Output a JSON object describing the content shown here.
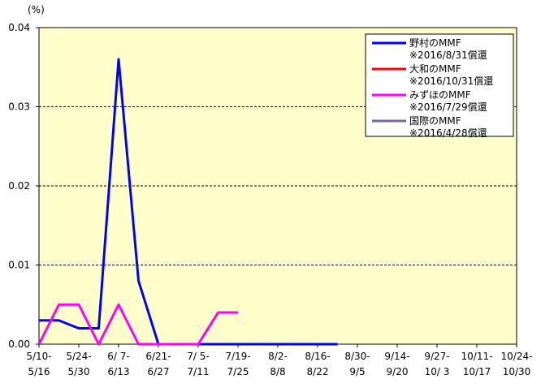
{
  "chart_data": {
    "type": "line",
    "y_unit": "(%)",
    "categories": [
      "5/10-\n5/16",
      null,
      "5/24-\n5/30",
      null,
      "6/ 7-\n6/13",
      null,
      "6/21-\n6/27",
      null,
      "7/ 5-\n7/11",
      null,
      "7/19-\n7/25",
      null,
      "8/2-\n8/8",
      null,
      "8/16-\n8/22",
      null,
      "8/30-\n9/5",
      null,
      "9/14-\n9/20",
      null,
      "9/27-\n10/ 3",
      null,
      "10/11-\n10/17",
      null,
      "10/24-\n10/30"
    ],
    "series": [
      {
        "name": "野村のMMF",
        "note": "※2016/8/31償還",
        "color": "#0000ff",
        "values": [
          0.003,
          0.003,
          0.002,
          0.002,
          0.036,
          0.008,
          0,
          0,
          0,
          0,
          0,
          0,
          0,
          0,
          0,
          0,
          null,
          null,
          null,
          null,
          null,
          null,
          null,
          null,
          null
        ]
      },
      {
        "name": "大和のMMF",
        "note": "※2016/10/31償還",
        "color": "#ff0000",
        "values": [
          null,
          null,
          null,
          null,
          null,
          null,
          null,
          null,
          null,
          null,
          null,
          null,
          null,
          null,
          null,
          null,
          null,
          null,
          null,
          null,
          null,
          null,
          null,
          null,
          null
        ]
      },
      {
        "name": "みずほのMMF",
        "note": "※2016/7/29償還",
        "color": "#ff00ff",
        "values": [
          0,
          0.005,
          0.005,
          0,
          0.005,
          0,
          0,
          0,
          0,
          0.004,
          0.004,
          null,
          null,
          null,
          null,
          null,
          null,
          null,
          null,
          null,
          null,
          null,
          null,
          null,
          null
        ]
      },
      {
        "name": "国際のMMF",
        "note": "※2016/4/28償還",
        "color": "#8060a0",
        "values": [
          null,
          null,
          null,
          null,
          null,
          null,
          null,
          null,
          null,
          null,
          null,
          null,
          null,
          null,
          null,
          null,
          null,
          null,
          null,
          null,
          null,
          null,
          null,
          null,
          null
        ]
      }
    ],
    "ylim": [
      0,
      0.04
    ],
    "yticks": [
      {
        "value": 0,
        "label": "0.00"
      },
      0.01,
      0.02,
      0.03,
      0.04
    ],
    "grid": true
  }
}
